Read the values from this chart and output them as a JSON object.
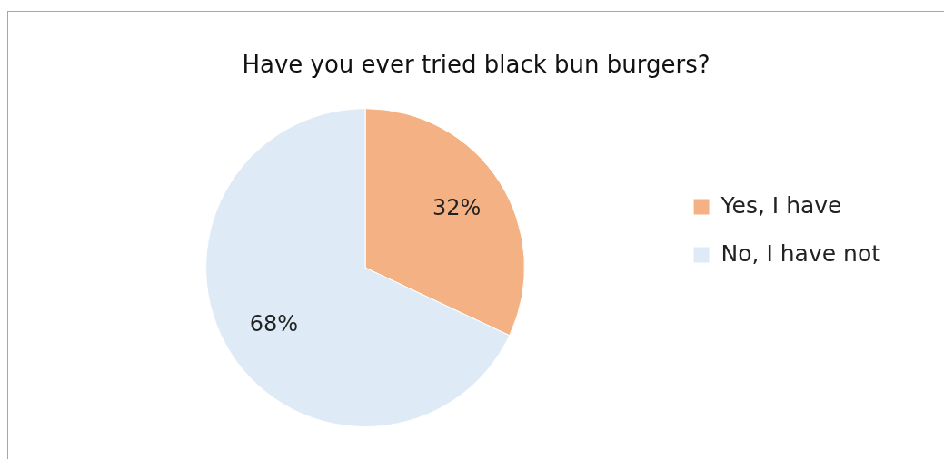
{
  "chart_data": {
    "type": "pie",
    "title": "Have you ever tried black bun burgers?",
    "categories": [
      "Yes, I have",
      "No, I have not"
    ],
    "values": [
      32,
      68
    ],
    "colors": [
      "#f4b183",
      "#deebf7"
    ],
    "value_labels": [
      "32%",
      "68%"
    ],
    "legend": "right"
  }
}
